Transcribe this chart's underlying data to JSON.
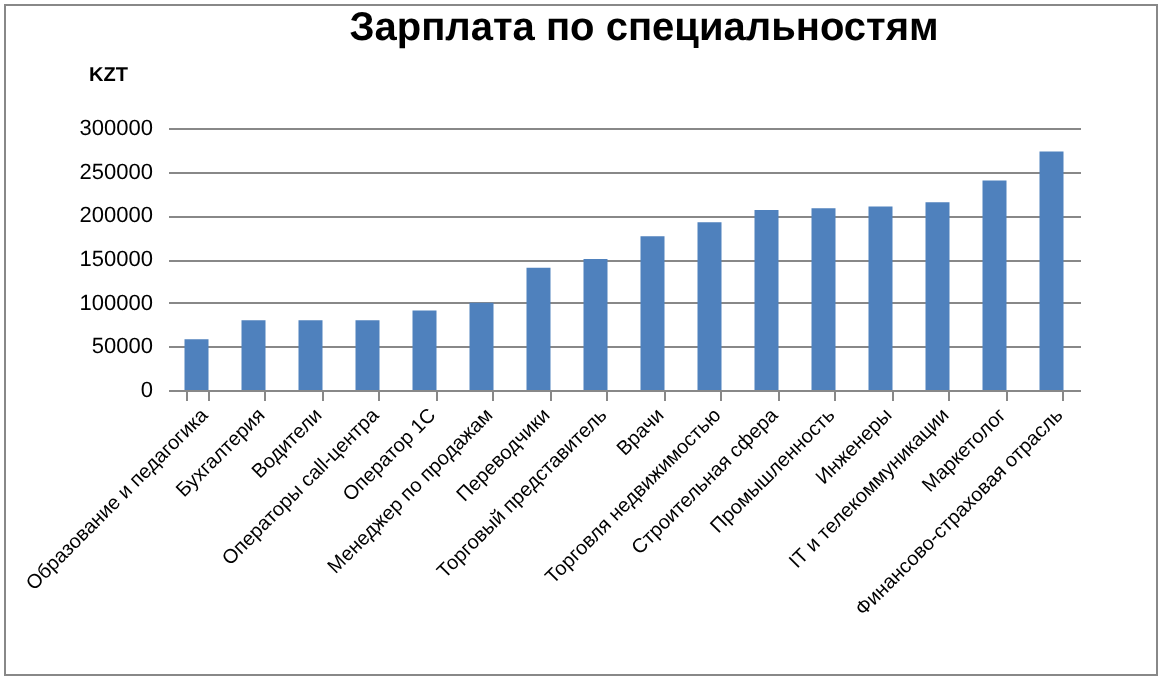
{
  "chart_data": {
    "type": "bar",
    "title": "Зарплата по специальностям",
    "ylabel": "KZT",
    "categories": [
      "Образование и педагогика",
      "Бухгалтерия",
      "Водители",
      "Операторы call-центра",
      "Оператор 1С",
      "Менеджер  по продажам",
      "Переводчики",
      "Торговый представитель",
      "Врачи",
      "Торговля недвижимостью",
      "Строительная сфера",
      "Промышленность",
      "Инженеры",
      "IT и телекоммуникации",
      "Маркетолог",
      "Финансово-страховая отрасль"
    ],
    "values": [
      58000,
      80000,
      80000,
      80000,
      91000,
      100000,
      140000,
      150000,
      176000,
      192000,
      206000,
      208000,
      210000,
      215000,
      240000,
      273000
    ],
    "color": "#4f81bd",
    "ylim": [
      0,
      300000
    ],
    "yticks": [
      0,
      50000,
      100000,
      150000,
      200000,
      250000,
      300000
    ],
    "grid": "y"
  }
}
